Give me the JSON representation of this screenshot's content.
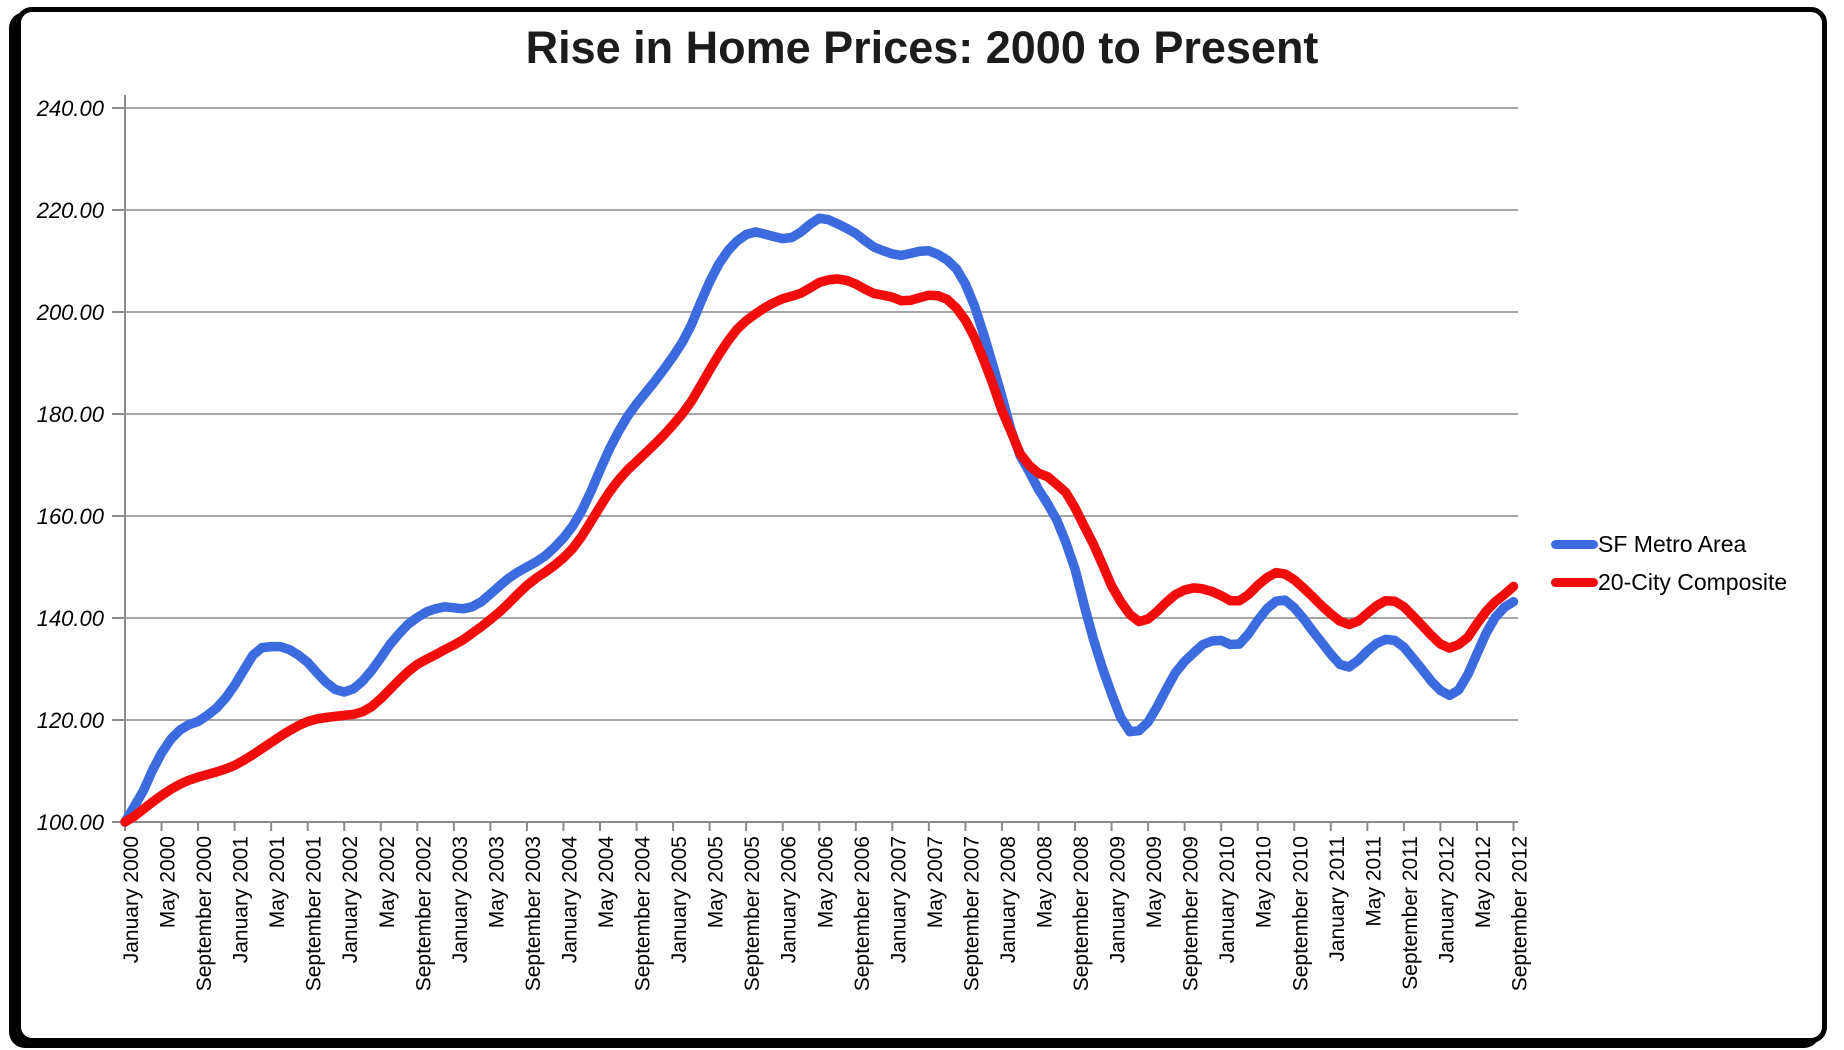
{
  "page": {
    "title": "Rise in Home Prices: 2000 to Present"
  },
  "chart_data": {
    "type": "line",
    "title": "Rise in Home Prices: 2000 to Present",
    "x_unit": "month",
    "x_start": "January 2000",
    "x_end": "September 2012",
    "x_tick_interval_months": 4,
    "x_tick_labels": [
      "January 2000",
      "May 2000",
      "September 2000",
      "January 2001",
      "May 2001",
      "September 2001",
      "January 2002",
      "May 2002",
      "September 2002",
      "January 2003",
      "May 2003",
      "September 2003",
      "January 2004",
      "May 2004",
      "September 2004",
      "January 2005",
      "May 2005",
      "September 2005",
      "January 2006",
      "May 2006",
      "September 2006",
      "January 2007",
      "May 2007",
      "September 2007",
      "January 2008",
      "May 2008",
      "September 2008",
      "January 2009",
      "May 2009",
      "September 2009",
      "January 2010",
      "May 2010",
      "September 2010",
      "January 2011",
      "May 2011",
      "September 2011",
      "January 2012",
      "May 2012",
      "September 2012"
    ],
    "y_tick_labels": [
      "240.00",
      "220.00",
      "200.00",
      "180.00",
      "160.00",
      "140.00",
      "120.00",
      "100.00"
    ],
    "ylim": [
      100,
      240
    ],
    "y_tick_step": 20,
    "grid": true,
    "legend_position": "right",
    "colors": {
      "grid": "#a6a6a6",
      "axis": "#8c8c8c",
      "text": "#000000"
    },
    "series": [
      {
        "name": "SF Metro Area",
        "color": "#3c6be0",
        "values": [
          100.0,
          103.0,
          106.1,
          110.1,
          113.5,
          116.2,
          118.0,
          119.1,
          119.7,
          120.9,
          122.3,
          124.3,
          126.8,
          129.8,
          132.7,
          134.2,
          134.4,
          134.4,
          133.8,
          132.7,
          131.3,
          129.3,
          127.4,
          126.0,
          125.5,
          126.1,
          127.6,
          129.7,
          132.2,
          134.8,
          136.9,
          138.8,
          140.1,
          141.2,
          141.8,
          142.2,
          142.0,
          141.8,
          142.2,
          143.2,
          144.7,
          146.3,
          147.8,
          149.0,
          150.0,
          151.0,
          152.2,
          153.8,
          155.7,
          158.0,
          161.0,
          164.8,
          169.0,
          173.0,
          176.5,
          179.5,
          182.0,
          184.2,
          186.4,
          188.8,
          191.3,
          194.0,
          197.5,
          201.8,
          205.9,
          209.4,
          212.0,
          213.9,
          215.2,
          215.7,
          215.3,
          214.8,
          214.4,
          214.6,
          215.7,
          217.2,
          218.4,
          218.1,
          217.3,
          216.4,
          215.4,
          214.0,
          212.7,
          212.0,
          211.4,
          211.1,
          211.5,
          211.9,
          212.0,
          211.3,
          210.2,
          208.5,
          205.5,
          201.2,
          195.6,
          189.6,
          183.4,
          176.8,
          171.8,
          168.6,
          165.2,
          162.4,
          159.2,
          154.8,
          149.6,
          142.5,
          135.9,
          130.2,
          125.1,
          120.5,
          117.7,
          117.9,
          119.6,
          122.6,
          126.1,
          129.3,
          131.5,
          133.2,
          134.8,
          135.5,
          135.6,
          134.8,
          134.9,
          136.9,
          139.5,
          141.8,
          143.3,
          143.5,
          142.0,
          139.9,
          137.5,
          135.2,
          132.9,
          130.9,
          130.4,
          131.7,
          133.5,
          135.0,
          135.8,
          135.6,
          134.3,
          132.1,
          129.9,
          127.6,
          125.8,
          124.8,
          125.9,
          128.9,
          133.0,
          137.0,
          140.1,
          142.1,
          143.2
        ]
      },
      {
        "name": "20-City Composite",
        "color": "#f20d0d",
        "values": [
          100.0,
          101.1,
          102.5,
          103.9,
          105.2,
          106.4,
          107.4,
          108.2,
          108.8,
          109.3,
          109.8,
          110.4,
          111.1,
          112.1,
          113.2,
          114.4,
          115.6,
          116.8,
          117.9,
          118.9,
          119.7,
          120.2,
          120.5,
          120.7,
          120.9,
          121.1,
          121.6,
          122.6,
          124.2,
          126.0,
          127.8,
          129.5,
          130.9,
          131.9,
          132.8,
          133.8,
          134.7,
          135.7,
          137.0,
          138.3,
          139.7,
          141.2,
          142.9,
          144.7,
          146.4,
          147.8,
          149.0,
          150.3,
          151.8,
          153.6,
          156.0,
          158.9,
          161.8,
          164.6,
          167.0,
          169.0,
          170.7,
          172.4,
          174.1,
          175.9,
          177.9,
          180.0,
          182.5,
          185.5,
          188.6,
          191.6,
          194.3,
          196.6,
          198.3,
          199.6,
          200.8,
          201.8,
          202.6,
          203.1,
          203.7,
          204.7,
          205.8,
          206.3,
          206.5,
          206.2,
          205.5,
          204.5,
          203.6,
          203.3,
          202.9,
          202.2,
          202.3,
          202.8,
          203.3,
          203.2,
          202.5,
          200.8,
          198.4,
          195.0,
          190.6,
          185.9,
          180.7,
          176.5,
          172.2,
          169.9,
          168.4,
          167.7,
          166.2,
          164.6,
          161.6,
          158.0,
          154.5,
          150.5,
          146.3,
          143.2,
          140.7,
          139.3,
          139.8,
          141.3,
          143.1,
          144.6,
          145.5,
          145.9,
          145.7,
          145.2,
          144.4,
          143.4,
          143.4,
          144.6,
          146.4,
          147.9,
          148.9,
          148.6,
          147.5,
          145.9,
          144.2,
          142.4,
          140.8,
          139.4,
          138.7,
          139.4,
          140.9,
          142.4,
          143.4,
          143.3,
          142.2,
          140.4,
          138.5,
          136.6,
          134.9,
          134.1,
          134.8,
          136.2,
          138.9,
          141.3,
          143.2,
          144.6,
          146.2
        ]
      }
    ]
  }
}
